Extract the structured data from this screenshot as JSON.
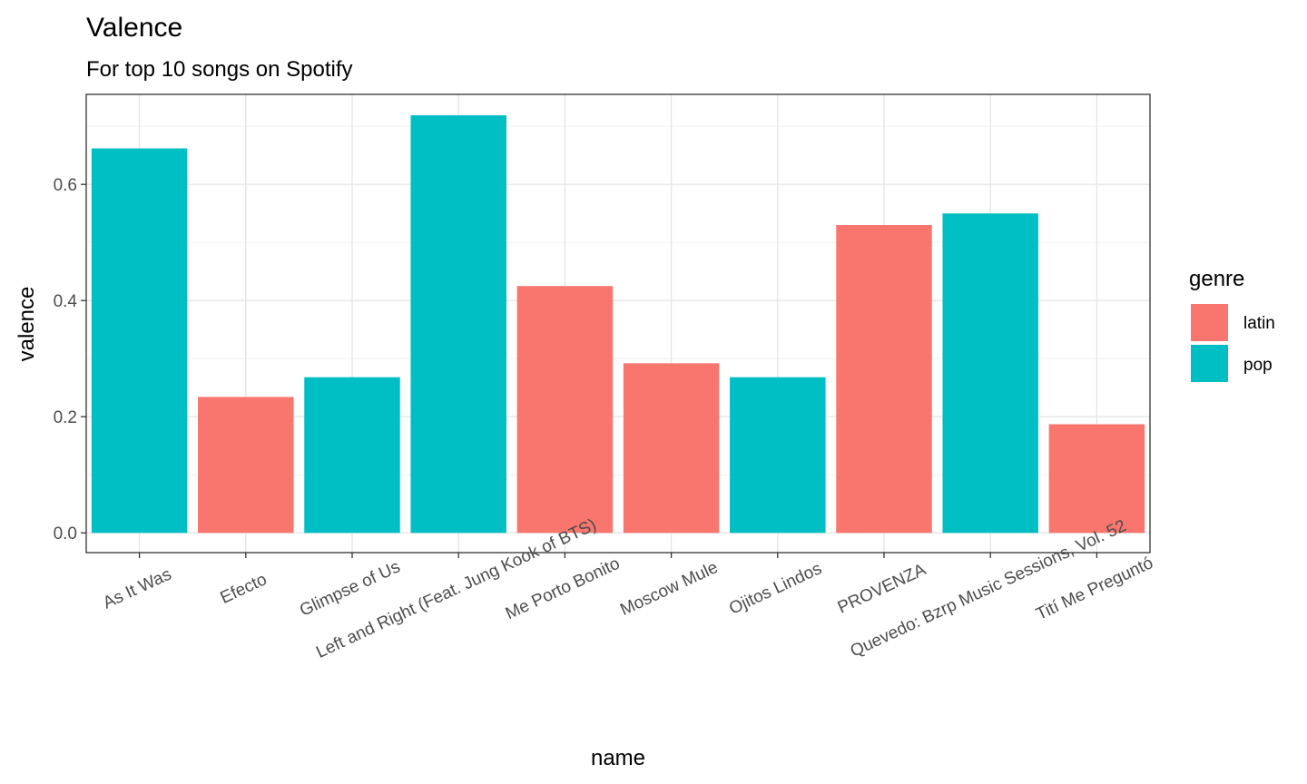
{
  "chart_data": {
    "type": "bar",
    "title": "Valence",
    "subtitle": "For top 10 songs on Spotify",
    "xlabel": "name",
    "ylabel": "valence",
    "categories": [
      "As It Was",
      "Efecto",
      "Glimpse of Us",
      "Left and Right (Feat. Jung Kook of BTS)",
      "Me Porto Bonito",
      "Moscow Mule",
      "Ojitos Lindos",
      "PROVENZA",
      "Quevedo: Bzrp Music Sessions, Vol. 52",
      "Tití Me Preguntó"
    ],
    "values": [
      0.662,
      0.234,
      0.268,
      0.719,
      0.425,
      0.292,
      0.268,
      0.53,
      0.55,
      0.187
    ],
    "genre": [
      "pop",
      "latin",
      "pop",
      "pop",
      "latin",
      "latin",
      "pop",
      "latin",
      "pop",
      "latin"
    ],
    "ylim": [
      -0.034,
      0.755
    ],
    "yticks": [
      0.0,
      0.2,
      0.4,
      0.6
    ],
    "ytick_labels": [
      "0.0",
      "0.2",
      "0.4",
      "0.6"
    ],
    "grid": true,
    "legend": {
      "title": "genre",
      "placement": "right",
      "entries": [
        {
          "name": "latin",
          "color": "#F8766D"
        },
        {
          "name": "pop",
          "color": "#00BFC4"
        }
      ]
    }
  }
}
